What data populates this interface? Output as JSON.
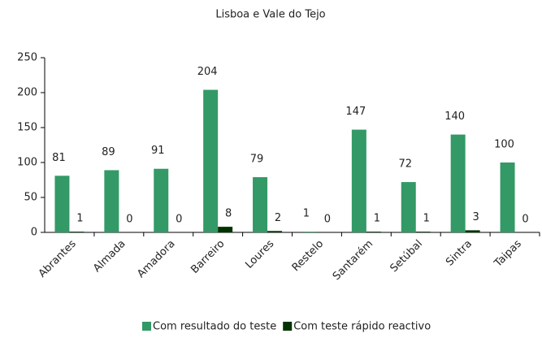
{
  "chart_data": {
    "type": "bar",
    "title": "Lisboa e Vale do Tejo",
    "categories": [
      "Abrantes",
      "Almada",
      "Amadora",
      "Barreiro",
      "Loures",
      "Restelo",
      "Santarém",
      "Setúbal",
      "Sintra",
      "Taipas"
    ],
    "series": [
      {
        "name": "Com resultado do teste",
        "color": "#339966",
        "values": [
          81,
          89,
          91,
          204,
          79,
          1,
          147,
          72,
          140,
          100
        ]
      },
      {
        "name": "Com teste rápido reactivo",
        "color": "#003300",
        "values": [
          1,
          0,
          0,
          8,
          2,
          0,
          1,
          1,
          3,
          0
        ]
      }
    ],
    "ylim": [
      0,
      250
    ],
    "yticks": [
      0,
      50,
      100,
      150,
      200,
      250
    ]
  }
}
